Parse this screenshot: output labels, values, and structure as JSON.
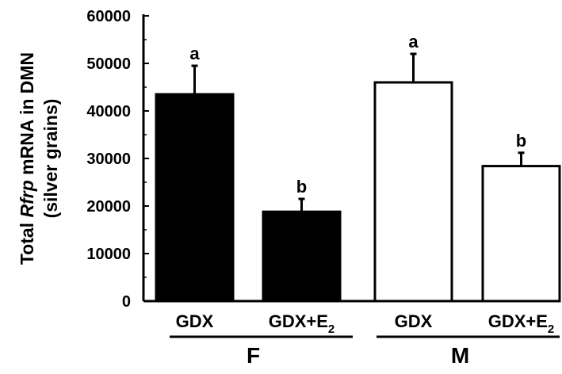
{
  "chart_data": {
    "type": "bar",
    "title": "",
    "ylabel_parts": {
      "prefix": "Total ",
      "italic": "Rfrp",
      "suffix": " mRNA in DMN",
      "line2": "(silver grains)"
    },
    "ylim": [
      0,
      60000
    ],
    "yticks": [
      "0",
      "10000",
      "20000",
      "30000",
      "40000",
      "50000",
      "60000"
    ],
    "ytick_values": [
      0,
      10000,
      20000,
      30000,
      40000,
      50000,
      60000
    ],
    "bars": [
      {
        "category": "GDX",
        "group": "F",
        "value": 43500,
        "error": 6000,
        "sig": "a",
        "fill": "#000000"
      },
      {
        "category": "GDX+E",
        "subscript": "2",
        "group": "F",
        "value": 18800,
        "error": 2700,
        "sig": "b",
        "fill": "#000000"
      },
      {
        "category": "GDX",
        "group": "M",
        "value": 46000,
        "error": 6000,
        "sig": "a",
        "fill": "#ffffff"
      },
      {
        "category": "GDX+E",
        "subscript": "2",
        "group": "M",
        "value": 28400,
        "error": 2800,
        "sig": "b",
        "fill": "#ffffff"
      }
    ],
    "groups": [
      "F",
      "M"
    ],
    "grid": false,
    "legend": "none"
  }
}
